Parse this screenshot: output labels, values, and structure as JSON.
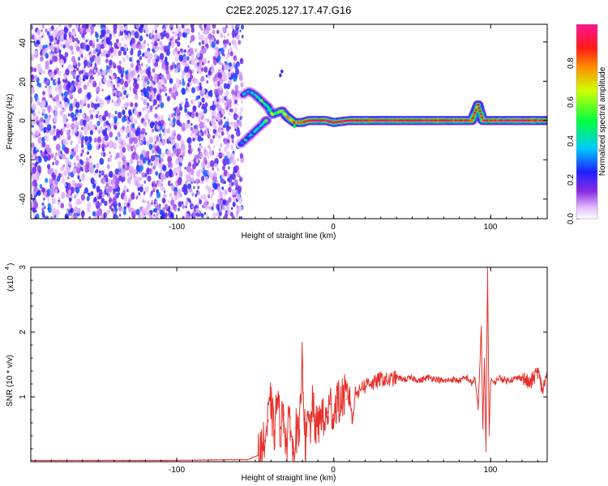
{
  "figure": {
    "title": "C2E2.2025.127.17.47.G16"
  },
  "chart_data": [
    {
      "type": "heatmap",
      "title": "C2E2.2025.127.17.47.G16",
      "xlabel": "Height of straight line (km)",
      "ylabel": "Frequency (Hz)",
      "xlim": [
        -193,
        136
      ],
      "ylim": [
        -50,
        49
      ],
      "x_ticks": [
        -100,
        0,
        100
      ],
      "x_tick_labels": [
        "-100",
        "0",
        "100"
      ],
      "y_ticks": [
        -40,
        -20,
        0,
        20,
        40
      ],
      "y_tick_labels": [
        "-40",
        "-20",
        "0",
        "20",
        "40"
      ],
      "colorbar": {
        "label": "Normalized spectral amplitude",
        "range": [
          0.0,
          1.0
        ],
        "ticks": [
          0.0,
          0.2,
          0.4,
          0.6,
          0.8
        ],
        "tick_labels": [
          "0.0",
          "0.2",
          "0.4",
          "0.6",
          "0.8"
        ],
        "colormap": "rainbow (white-violet-blue-cyan-green-yellow-red-magenta)"
      },
      "features": {
        "noise_region_x": [
          -193,
          -58
        ],
        "noise_amplitude_range": [
          0.05,
          0.3
        ],
        "signal_trace_points": [
          {
            "x": -59,
            "y": -12,
            "amp": 0.3
          },
          {
            "x": -55,
            "y": -9,
            "amp": 0.35
          },
          {
            "x": -51,
            "y": -6,
            "amp": 0.4
          },
          {
            "x": -47,
            "y": -3,
            "amp": 0.4
          },
          {
            "x": -43,
            "y": 0,
            "amp": 0.5
          },
          {
            "x": -58,
            "y": 13,
            "amp": 0.3
          },
          {
            "x": -54,
            "y": 15,
            "amp": 0.35
          },
          {
            "x": -50,
            "y": 13,
            "amp": 0.45
          },
          {
            "x": -46,
            "y": 10,
            "amp": 0.5
          },
          {
            "x": -42,
            "y": 7,
            "amp": 0.5
          },
          {
            "x": -39,
            "y": 3,
            "amp": 0.55
          },
          {
            "x": -33,
            "y": 5,
            "amp": 0.6
          },
          {
            "x": -30,
            "y": 2,
            "amp": 0.7
          },
          {
            "x": -25,
            "y": -1,
            "amp": 0.8
          },
          {
            "x": -20,
            "y": -1,
            "amp": 0.9
          },
          {
            "x": -16,
            "y": 0,
            "amp": 0.95
          },
          {
            "x": -5,
            "y": 0,
            "amp": 0.95
          },
          {
            "x": 0,
            "y": -1,
            "amp": 0.95
          },
          {
            "x": 10,
            "y": 0,
            "amp": 0.95
          },
          {
            "x": 40,
            "y": 0,
            "amp": 0.95
          },
          {
            "x": 70,
            "y": 0,
            "amp": 0.95
          },
          {
            "x": 88,
            "y": 0,
            "amp": 0.9
          },
          {
            "x": 92,
            "y": 8,
            "amp": 0.8
          },
          {
            "x": 95,
            "y": 0,
            "amp": 0.9
          },
          {
            "x": 120,
            "y": 0,
            "amp": 0.95
          },
          {
            "x": 136,
            "y": 0,
            "amp": 0.9
          }
        ]
      }
    },
    {
      "type": "line",
      "xlabel": "Height of straight line (km)",
      "ylabel": "SNR (10 * v/v)",
      "y_multiplier_label": "(x10",
      "y_multiplier_exponent": "4",
      "xlim": [
        -193,
        136
      ],
      "ylim": [
        0,
        3
      ],
      "x_ticks": [
        -100,
        0,
        100
      ],
      "x_tick_labels": [
        "-100",
        "0",
        "100"
      ],
      "y_ticks": [
        1,
        2,
        3
      ],
      "y_tick_labels": [
        "1",
        "2",
        "3"
      ],
      "line_color": "#e8302a",
      "series": [
        {
          "x": [
            -193,
            -150,
            -100,
            -70,
            -55,
            -48,
            -44,
            -42,
            -40,
            -38,
            -36,
            -34,
            -32,
            -30,
            -28,
            -26,
            -24,
            -22,
            -20,
            -18,
            -16,
            -15,
            -14,
            -12,
            -10,
            -8,
            -6,
            -4,
            -2,
            0,
            2,
            4,
            6,
            8,
            10,
            12,
            14,
            16,
            18,
            20,
            22,
            25,
            30,
            35,
            40,
            45,
            50,
            55,
            60,
            65,
            70,
            75,
            80,
            85,
            88,
            90,
            92,
            94,
            95,
            96,
            97,
            98,
            99,
            100,
            102,
            105,
            110,
            115,
            120,
            125,
            130,
            133,
            136
          ],
          "y": [
            0.02,
            0.02,
            0.02,
            0.03,
            0.03,
            0.1,
            0.3,
            0.6,
            0.95,
            0.4,
            1.0,
            0.5,
            0.8,
            0.2,
            0.75,
            0.1,
            0.5,
            0.3,
            1.65,
            0.2,
            0.7,
            0.4,
            0.9,
            0.6,
            0.5,
            0.8,
            0.55,
            0.75,
            0.9,
            0.7,
            1.0,
            0.85,
            1.05,
            0.95,
            1.1,
            0.6,
            1.15,
            1.05,
            1.2,
            1.15,
            1.25,
            1.2,
            1.28,
            1.25,
            1.3,
            1.27,
            1.29,
            1.25,
            1.3,
            1.28,
            1.24,
            1.27,
            1.25,
            1.3,
            1.2,
            1.3,
            0.8,
            2.1,
            0.5,
            1.6,
            0.15,
            3.0,
            0.4,
            1.3,
            1.2,
            1.3,
            1.25,
            1.28,
            1.3,
            1.2,
            1.4,
            1.1,
            1.35
          ]
        }
      ]
    }
  ]
}
